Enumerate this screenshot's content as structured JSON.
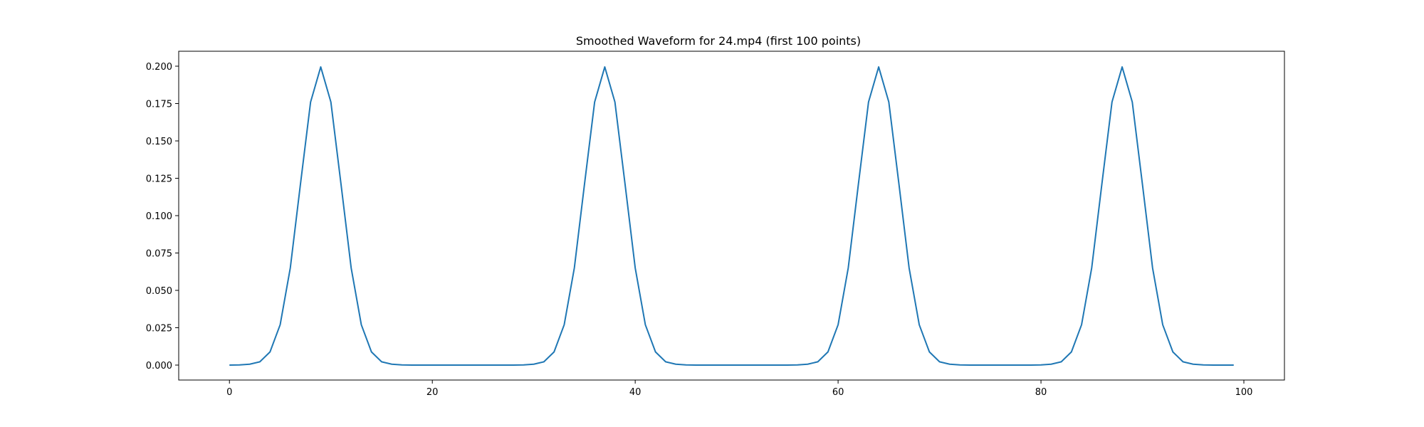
{
  "chart_data": {
    "type": "line",
    "title": "Smoothed Waveform for 24.mp4 (first 100 points)",
    "xlabel": "",
    "ylabel": "",
    "xlim": [
      -5,
      104
    ],
    "ylim": [
      -0.01,
      0.21
    ],
    "xticks": [
      0,
      20,
      40,
      60,
      80,
      100
    ],
    "xtick_labels": [
      "0",
      "20",
      "40",
      "60",
      "80",
      "100"
    ],
    "yticks": [
      0.0,
      0.025,
      0.05,
      0.075,
      0.1,
      0.125,
      0.15,
      0.175,
      0.2
    ],
    "ytick_labels": [
      "0.000",
      "0.025",
      "0.050",
      "0.075",
      "0.100",
      "0.125",
      "0.150",
      "0.175",
      "0.200"
    ],
    "grid": false,
    "series": [
      {
        "color": "#1f77b4",
        "x": [
          0,
          1,
          2,
          3,
          4,
          5,
          6,
          7,
          8,
          9,
          10,
          11,
          12,
          13,
          14,
          15,
          16,
          17,
          18,
          19,
          20,
          21,
          22,
          23,
          24,
          25,
          26,
          27,
          28,
          29,
          30,
          31,
          32,
          33,
          34,
          35,
          36,
          37,
          38,
          39,
          40,
          41,
          42,
          43,
          44,
          45,
          46,
          47,
          48,
          49,
          50,
          51,
          52,
          53,
          54,
          55,
          56,
          57,
          58,
          59,
          60,
          61,
          62,
          63,
          64,
          65,
          66,
          67,
          68,
          69,
          70,
          71,
          72,
          73,
          74,
          75,
          76,
          77,
          78,
          79,
          80,
          81,
          82,
          83,
          84,
          85,
          86,
          87,
          88,
          89,
          90,
          91,
          92,
          93,
          94,
          95,
          96,
          97,
          98,
          99
        ],
        "y": [
          0.0,
          0.0001,
          0.0006,
          0.0022,
          0.0088,
          0.027,
          0.065,
          0.121,
          0.176,
          0.1995,
          0.176,
          0.121,
          0.065,
          0.027,
          0.0088,
          0.0022,
          0.0006,
          0.0001,
          0.0,
          0.0,
          0.0,
          0.0,
          0.0,
          0.0,
          0.0,
          0.0,
          0.0,
          0.0,
          0.0,
          0.0001,
          0.0006,
          0.0022,
          0.0088,
          0.027,
          0.065,
          0.121,
          0.176,
          0.1995,
          0.176,
          0.121,
          0.065,
          0.027,
          0.0088,
          0.0022,
          0.0006,
          0.0001,
          0.0,
          0.0,
          0.0,
          0.0,
          0.0,
          0.0,
          0.0,
          0.0,
          0.0,
          0.0,
          0.0001,
          0.0006,
          0.0022,
          0.0088,
          0.027,
          0.065,
          0.121,
          0.176,
          0.1995,
          0.176,
          0.121,
          0.065,
          0.027,
          0.0088,
          0.0022,
          0.0006,
          0.0001,
          0.0,
          0.0,
          0.0,
          0.0,
          0.0,
          0.0,
          0.0,
          0.0001,
          0.0006,
          0.0022,
          0.0088,
          0.027,
          0.065,
          0.121,
          0.176,
          0.1995,
          0.176,
          0.121,
          0.065,
          0.027,
          0.0088,
          0.0022,
          0.0006,
          0.0001,
          0.0,
          0.0,
          0.0
        ]
      }
    ]
  }
}
